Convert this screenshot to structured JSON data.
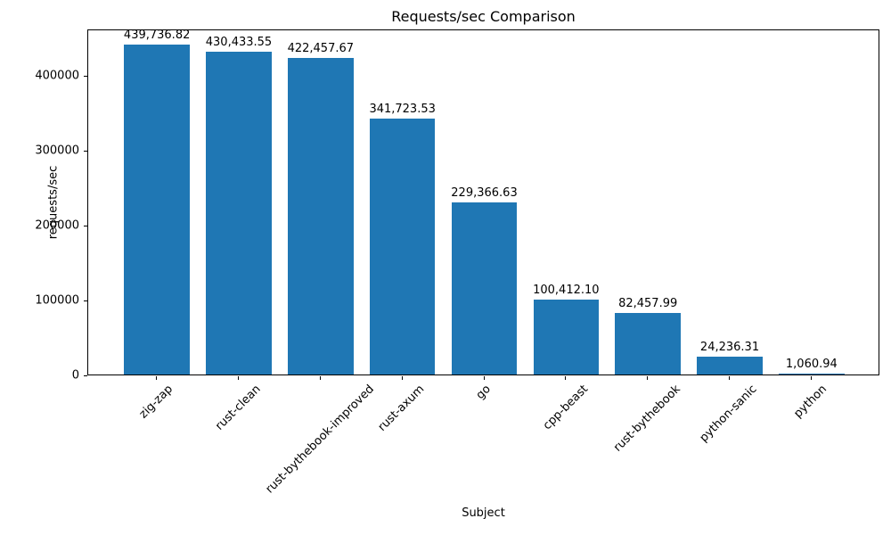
{
  "chart_data": {
    "type": "bar",
    "title": "Requests/sec Comparison",
    "xlabel": "Subject",
    "ylabel": "requests/sec",
    "categories": [
      "zig-zap",
      "rust-clean",
      "rust-bythebook-improved",
      "rust-axum",
      "go",
      "cpp-beast",
      "rust-bythebook",
      "python-sanic",
      "python"
    ],
    "values": [
      439736.82,
      430433.55,
      422457.67,
      341723.53,
      229366.63,
      100412.1,
      82457.99,
      24236.31,
      1060.94
    ],
    "value_labels": [
      "439,736.82",
      "430,433.55",
      "422,457.67",
      "341,723.53",
      "229,366.63",
      "100,412.10",
      "82,457.99",
      "24,236.31",
      "1,060.94"
    ],
    "ytick_values": [
      0,
      100000,
      200000,
      300000,
      400000
    ],
    "ytick_labels": [
      "0",
      "100000",
      "200000",
      "300000",
      "400000"
    ],
    "ylim": [
      0,
      461723.66
    ],
    "bar_color": "#1f77b4",
    "bar_width_ratio": 0.8,
    "grid": false,
    "legend_position": "none"
  }
}
